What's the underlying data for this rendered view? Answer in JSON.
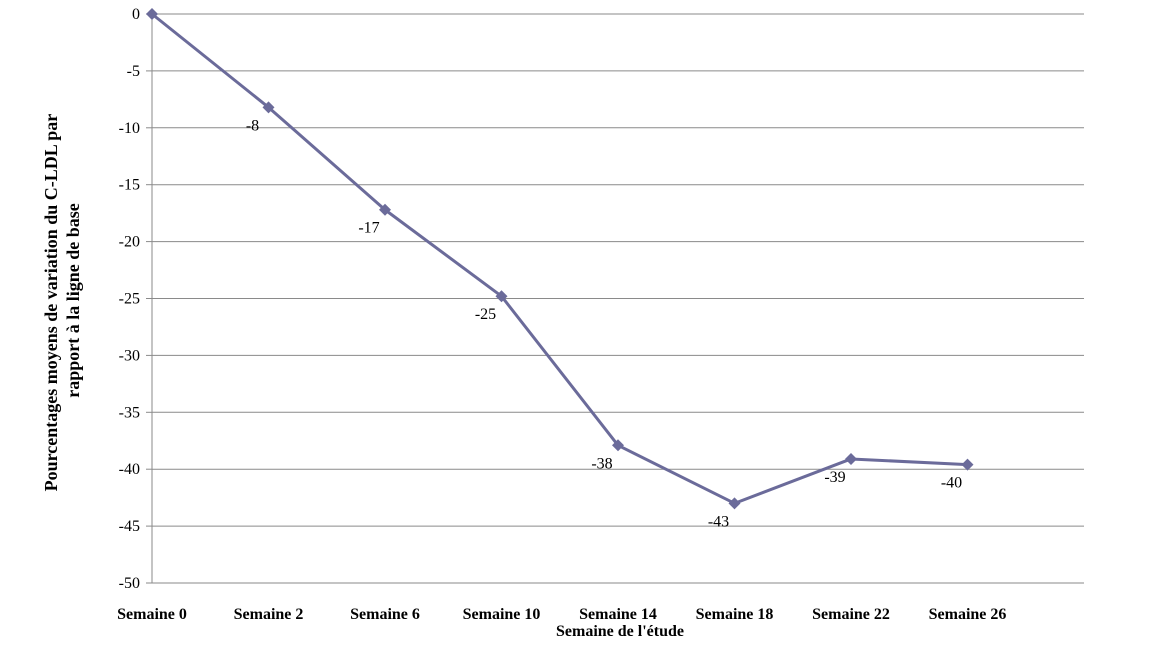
{
  "chart_data": {
    "type": "line",
    "categories": [
      "Semaine 0",
      "Semaine 2",
      "Semaine 6",
      "Semaine 10",
      "Semaine 14",
      "Semaine 18",
      "Semaine 22",
      "Semaine 26"
    ],
    "series": [
      {
        "values": [
          0,
          -8.2,
          -17.2,
          -24.8,
          -37.9,
          -43,
          -39.1,
          -39.6
        ],
        "labels": [
          "",
          "-8",
          "-17",
          "-25",
          "-38",
          "-43",
          "-39",
          "-40"
        ],
        "color": "#6b6b9a"
      }
    ],
    "ylabel_line1": "Pourcentages moyens de variation du C-LDL par",
    "ylabel_line2": "rapport à la ligne de base",
    "xlabel": "Semaine de l'étude",
    "ylim": [
      -50,
      0
    ],
    "ytick_step": 5,
    "grid": true,
    "gridline_color": "#8a8a8a"
  }
}
